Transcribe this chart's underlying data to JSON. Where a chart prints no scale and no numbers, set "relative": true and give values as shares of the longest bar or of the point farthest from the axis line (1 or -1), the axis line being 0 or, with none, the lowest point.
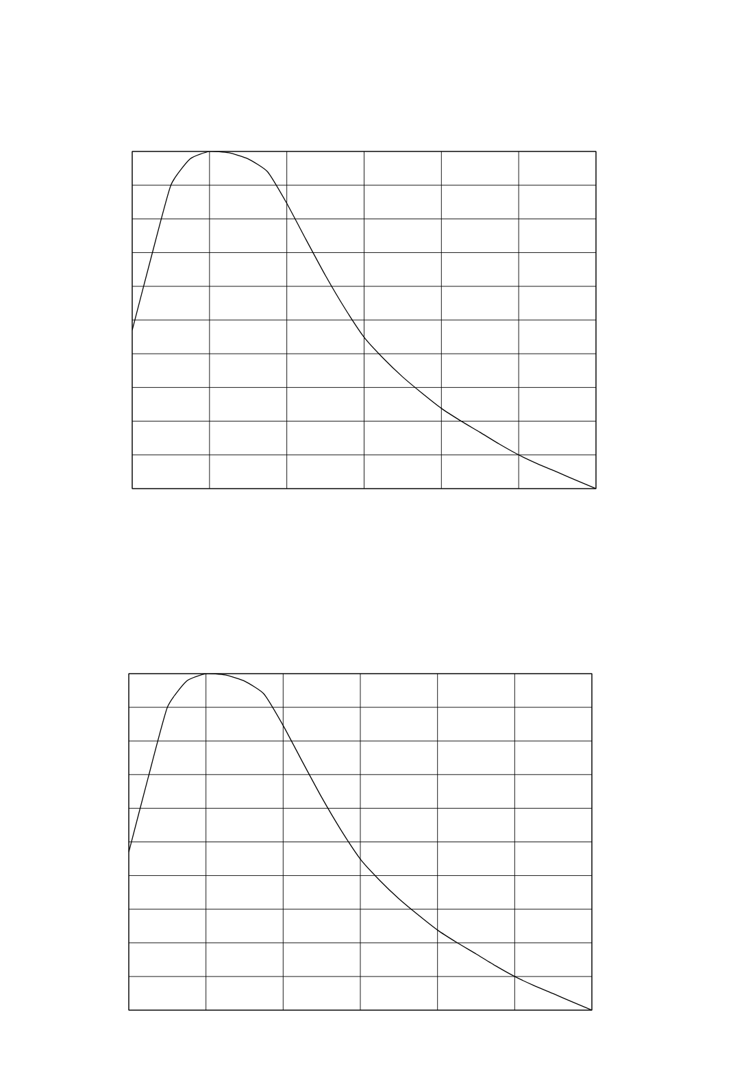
{
  "chart_data": [
    {
      "type": "line",
      "relative": true,
      "grid": true,
      "color": "#000000",
      "categories": [
        null,
        null,
        null,
        null,
        null,
        null,
        null,
        null,
        null,
        null,
        null,
        null,
        null,
        null,
        null,
        null,
        null,
        null,
        null,
        null,
        null,
        null,
        null,
        null,
        null
      ],
      "values": [
        0.47,
        0.69,
        0.9,
        0.978,
        1.0,
        0.996,
        0.978,
        0.94,
        0.846,
        0.738,
        0.632,
        0.535,
        0.449,
        0.386,
        0.331,
        0.283,
        0.238,
        0.201,
        0.167,
        0.132,
        0.1,
        0.073,
        0.049,
        0.024,
        0.0
      ]
    },
    {
      "type": "line",
      "relative": true,
      "grid": true,
      "color": "#000000",
      "categories": [
        null,
        null,
        null,
        null,
        null,
        null,
        null,
        null,
        null,
        null,
        null,
        null,
        null,
        null,
        null,
        null,
        null,
        null,
        null,
        null,
        null,
        null,
        null,
        null,
        null
      ],
      "values": [
        0.47,
        0.69,
        0.9,
        0.978,
        1.0,
        0.996,
        0.978,
        0.94,
        0.846,
        0.738,
        0.632,
        0.535,
        0.449,
        0.386,
        0.331,
        0.283,
        0.238,
        0.201,
        0.167,
        0.132,
        0.1,
        0.073,
        0.049,
        0.024,
        0.0
      ]
    }
  ]
}
